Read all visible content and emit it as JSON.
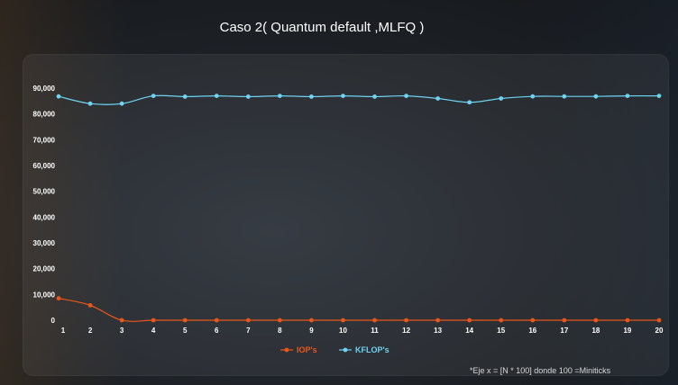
{
  "chart_data": {
    "type": "line",
    "title": "Caso 2( Quantum  default ,MLFQ )",
    "xlabel": "",
    "ylabel": "",
    "categories": [
      "1",
      "2",
      "3",
      "4",
      "5",
      "6",
      "7",
      "8",
      "9",
      "10",
      "11",
      "12",
      "13",
      "14",
      "15",
      "16",
      "17",
      "18",
      "19",
      "20"
    ],
    "y_ticks": [
      "0",
      "10,000",
      "20,000",
      "30,000",
      "40,000",
      "50,000",
      "60,000",
      "70,000",
      "80,000",
      "90,000"
    ],
    "ylim": [
      0,
      90000
    ],
    "grid": false,
    "legend_position": "bottom",
    "series": [
      {
        "name": "IOP's",
        "color": "#e8561a",
        "values": [
          8500,
          5800,
          0,
          0,
          0,
          0,
          0,
          0,
          0,
          0,
          0,
          0,
          0,
          0,
          0,
          0,
          0,
          0,
          0,
          0
        ]
      },
      {
        "name": "KFLOP's",
        "color": "#6fd3f2",
        "values": [
          86800,
          84000,
          84000,
          87000,
          86700,
          87000,
          86700,
          87000,
          86700,
          87000,
          86700,
          87000,
          86000,
          84500,
          86000,
          86800,
          86800,
          86800,
          87000,
          87000
        ]
      }
    ],
    "footnote": "*Eje x = [N * 100] donde 100 =Miniticks"
  }
}
